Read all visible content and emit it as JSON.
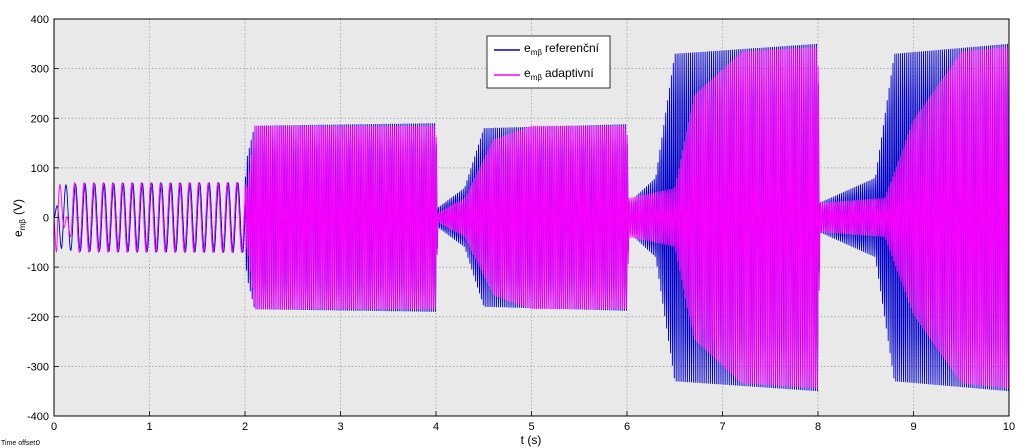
{
  "chart_data": {
    "type": "line",
    "xlabel": "t (s)",
    "ylabel": {
      "main": "e",
      "sub": "mβ",
      "unit": "(V)"
    },
    "xlim": [
      0,
      10
    ],
    "ylim": [
      -400,
      400
    ],
    "xticks": [
      0,
      1,
      2,
      3,
      4,
      5,
      6,
      7,
      8,
      9,
      10
    ],
    "yticks": [
      -400,
      -300,
      -200,
      -100,
      0,
      100,
      200,
      300,
      400
    ],
    "grid": true,
    "legend_position": "top-center",
    "series": [
      {
        "legend_main": "e",
        "legend_sub": "mβ",
        "legend_label": "referenční",
        "color": "#0000c8",
        "envelope": [
          [
            0,
            0
          ],
          [
            0.08,
            65
          ],
          [
            0.3,
            68
          ],
          [
            2.0,
            70
          ],
          [
            2.02,
            120
          ],
          [
            2.1,
            185
          ],
          [
            4.0,
            190
          ],
          [
            4.02,
            20
          ],
          [
            4.3,
            60
          ],
          [
            4.5,
            180
          ],
          [
            6.0,
            188
          ],
          [
            6.02,
            30
          ],
          [
            6.3,
            80
          ],
          [
            6.5,
            330
          ],
          [
            8.0,
            350
          ],
          [
            8.02,
            30
          ],
          [
            8.6,
            80
          ],
          [
            8.8,
            330
          ],
          [
            10.0,
            350
          ]
        ]
      },
      {
        "legend_main": "e",
        "legend_sub": "mβ",
        "legend_label": "adaptivní",
        "color": "#ff00ff",
        "envelope": [
          [
            0,
            0
          ],
          [
            0.03,
            -100
          ],
          [
            0.2,
            70
          ],
          [
            2.0,
            70
          ],
          [
            2.02,
            60
          ],
          [
            2.1,
            188
          ],
          [
            4.0,
            188
          ],
          [
            4.02,
            10
          ],
          [
            4.3,
            40
          ],
          [
            4.6,
            160
          ],
          [
            5.0,
            188
          ],
          [
            6.0,
            188
          ],
          [
            6.02,
            40
          ],
          [
            6.5,
            60
          ],
          [
            6.7,
            250
          ],
          [
            7.2,
            340
          ],
          [
            8.0,
            350
          ],
          [
            8.02,
            30
          ],
          [
            8.7,
            40
          ],
          [
            9.0,
            200
          ],
          [
            9.5,
            340
          ],
          [
            10.0,
            350
          ]
        ]
      }
    ]
  },
  "time_offset": {
    "label": "Time offset:",
    "value": "0"
  }
}
